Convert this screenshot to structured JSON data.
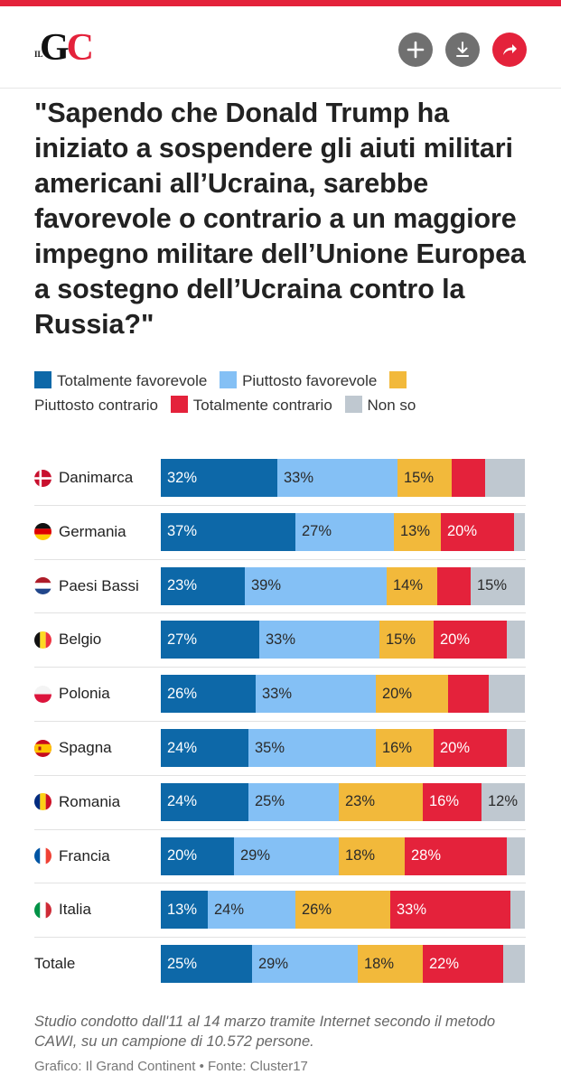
{
  "header": {
    "logo_small": "IL",
    "logo_g": "G",
    "logo_c": "C",
    "buttons": [
      "add",
      "download",
      "share"
    ]
  },
  "title": "\"Sapendo che Donald Trump ha iniziato a sospendere gli aiuti militari americani all’Ucraina, sarebbe favorevole o contrario a un maggiore impegno militare dell’Unione Europea a sostegno dell’Ucraina contro la Russia?\"",
  "legend": [
    {
      "label": "Totalmente favorevole",
      "color": "#0d68a8"
    },
    {
      "label": "Piuttosto favorevole",
      "color": "#84c0f5"
    },
    {
      "label": "Piuttosto contrario",
      "color": "#f2b93b"
    },
    {
      "label": "Totalmente contrario",
      "color": "#e4223b"
    },
    {
      "label": "Non so",
      "color": "#bfc8d0"
    }
  ],
  "chart_data": {
    "type": "bar",
    "stacked": true,
    "orientation": "horizontal",
    "unit": "%",
    "categories": [
      "Danimarca",
      "Germania",
      "Paesi Bassi",
      "Belgio",
      "Polonia",
      "Spagna",
      "Romania",
      "Francia",
      "Italia",
      "Totale"
    ],
    "flags": [
      "dk",
      "de",
      "nl",
      "be",
      "pl",
      "es",
      "ro",
      "fr",
      "it",
      ""
    ],
    "series": [
      {
        "name": "Totalmente favorevole",
        "color": "#0d68a8",
        "values": [
          32,
          37,
          23,
          27,
          26,
          24,
          24,
          20,
          13,
          25
        ]
      },
      {
        "name": "Piuttosto favorevole",
        "color": "#84c0f5",
        "values": [
          33,
          27,
          39,
          33,
          33,
          35,
          25,
          29,
          24,
          29
        ]
      },
      {
        "name": "Piuttosto contrario",
        "color": "#f2b93b",
        "values": [
          15,
          13,
          14,
          15,
          20,
          16,
          23,
          18,
          26,
          18
        ]
      },
      {
        "name": "Totalmente contrario",
        "color": "#e4223b",
        "values": [
          9,
          20,
          9,
          20,
          11,
          20,
          16,
          28,
          33,
          22
        ]
      },
      {
        "name": "Non so",
        "color": "#bfc8d0",
        "values": [
          11,
          3,
          15,
          5,
          10,
          5,
          12,
          5,
          4,
          6
        ]
      }
    ],
    "label_threshold": 12
  },
  "note": "Studio condotto dall'11 al 14 marzo tramite Internet secondo il metodo CAWI, su un campione di 10.572 persone.",
  "source": "Grafico: Il Grand Continent  • Fonte: Cluster17"
}
